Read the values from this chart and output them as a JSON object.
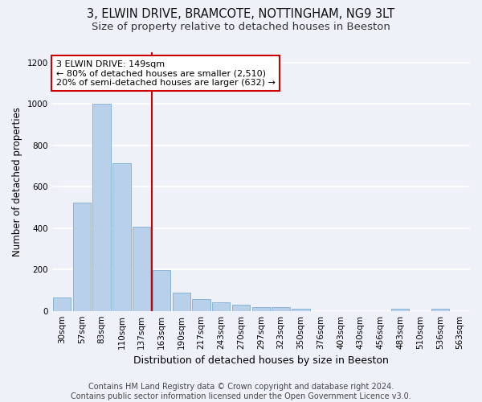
{
  "title_line1": "3, ELWIN DRIVE, BRAMCOTE, NOTTINGHAM, NG9 3LT",
  "title_line2": "Size of property relative to detached houses in Beeston",
  "xlabel": "Distribution of detached houses by size in Beeston",
  "ylabel": "Number of detached properties",
  "categories": [
    "30sqm",
    "57sqm",
    "83sqm",
    "110sqm",
    "137sqm",
    "163sqm",
    "190sqm",
    "217sqm",
    "243sqm",
    "270sqm",
    "297sqm",
    "323sqm",
    "350sqm",
    "376sqm",
    "403sqm",
    "430sqm",
    "456sqm",
    "483sqm",
    "510sqm",
    "536sqm",
    "563sqm"
  ],
  "values": [
    65,
    525,
    1000,
    715,
    408,
    198,
    88,
    57,
    40,
    30,
    20,
    18,
    10,
    0,
    0,
    0,
    0,
    12,
    0,
    10,
    0
  ],
  "bar_color": "#b8d0ea",
  "bar_edge_color": "#7aadd4",
  "vline_x_index": 5,
  "vline_color": "#cc0000",
  "annotation_text": "3 ELWIN DRIVE: 149sqm\n← 80% of detached houses are smaller (2,510)\n20% of semi-detached houses are larger (632) →",
  "annotation_box_color": "#ffffff",
  "annotation_box_edge_color": "#cc0000",
  "ylim": [
    0,
    1250
  ],
  "yticks": [
    0,
    200,
    400,
    600,
    800,
    1000,
    1200
  ],
  "background_color": "#eef2f8",
  "grid_color": "#ffffff",
  "footer_text": "Contains HM Land Registry data © Crown copyright and database right 2024.\nContains public sector information licensed under the Open Government Licence v3.0.",
  "title_fontsize": 10.5,
  "subtitle_fontsize": 9.5,
  "ylabel_fontsize": 8.5,
  "xlabel_fontsize": 9,
  "annotation_fontsize": 8,
  "tick_fontsize": 7.5,
  "footer_fontsize": 7
}
